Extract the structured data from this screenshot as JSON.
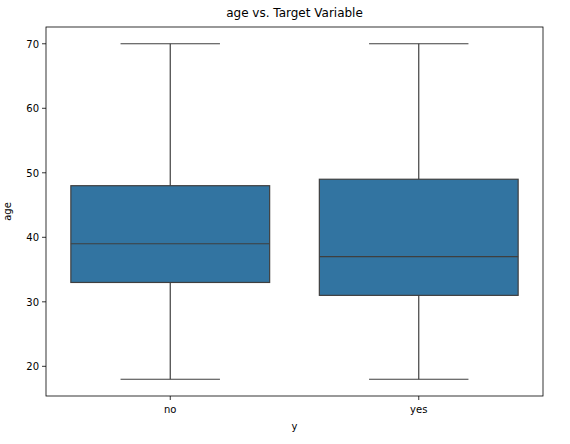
{
  "chart_data": {
    "type": "box",
    "title": "age vs. Target Variable",
    "x_label": "y",
    "y_label": "age",
    "categories": [
      "no",
      "yes"
    ],
    "boxes": [
      {
        "whisker_low": 18,
        "q1": 33,
        "median": 39,
        "q3": 48,
        "whisker_high": 70
      },
      {
        "whisker_low": 18,
        "q1": 31,
        "median": 37,
        "q3": 49,
        "whisker_high": 70
      }
    ],
    "color": "#3274a1",
    "ylim": [
      15.4,
      72.6
    ],
    "yticks": [
      20,
      30,
      40,
      50,
      60,
      70
    ],
    "grid": false
  }
}
